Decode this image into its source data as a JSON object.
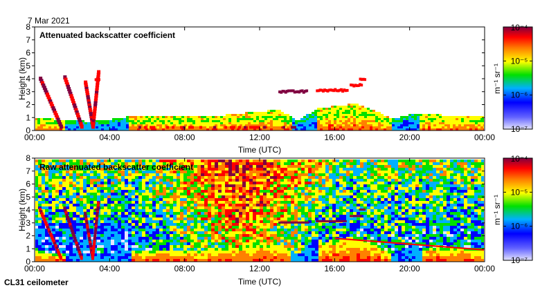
{
  "date_label": "7 Mar 2021",
  "instrument_label": "CL31 ceilometer",
  "chart_data": [
    {
      "type": "heatmap",
      "title": "Attenuated backscatter coefficient",
      "xlabel": "Time (UTC)",
      "ylabel": "Height (km)",
      "x_ticks": [
        "00:00",
        "04:00",
        "08:00",
        "12:00",
        "16:00",
        "20:00",
        "00:00"
      ],
      "xlim_hours": [
        0,
        24
      ],
      "y_ticks": [
        "0",
        "1",
        "2",
        "3",
        "4",
        "5",
        "6",
        "7",
        "8"
      ],
      "ylim_km": [
        0,
        8
      ],
      "colorbar": {
        "label": "m⁻¹ sr⁻¹",
        "tick_labels": [
          "10⁻⁴",
          "10⁻⁵",
          "10⁻⁶",
          "10⁻⁷"
        ],
        "range": [
          "1e-7",
          "1e-4"
        ],
        "colors": [
          "#e4e4ff",
          "#0000ff",
          "#00b0ff",
          "#00e000",
          "#ffff00",
          "#ff8000",
          "#ff0000",
          "#800040"
        ]
      },
      "boundary_layer_top_km": [
        [
          0,
          0.9
        ],
        [
          1,
          0.8
        ],
        [
          2,
          0.7
        ],
        [
          3,
          0.6
        ],
        [
          4,
          0.8
        ],
        [
          5,
          1.0
        ],
        [
          6,
          1.0
        ],
        [
          8,
          1.0
        ],
        [
          10,
          1.1
        ],
        [
          12,
          1.4
        ],
        [
          13,
          1.5
        ],
        [
          14,
          0.7
        ],
        [
          15,
          1.6
        ],
        [
          16,
          1.8
        ],
        [
          17,
          2.0
        ],
        [
          18,
          1.5
        ],
        [
          19,
          0.8
        ],
        [
          20,
          1.2
        ],
        [
          22,
          1.1
        ],
        [
          24,
          1.1
        ]
      ],
      "cloud_layers": [
        {
          "start_h": 13.0,
          "end_h": 14.5,
          "base_km": 3.0,
          "level": "very high"
        },
        {
          "start_h": 15.0,
          "end_h": 16.6,
          "base_km": 3.1,
          "level": "high"
        },
        {
          "start_h": 16.8,
          "end_h": 17.4,
          "base_km": 3.5,
          "level": "high"
        },
        {
          "start_h": 17.3,
          "end_h": 17.6,
          "base_km": 4.0,
          "level": "high"
        },
        {
          "start_h": 3.2,
          "end_h": 3.4,
          "base_km": 4.0,
          "level": "high"
        }
      ],
      "precipitation_streaks": [
        {
          "start_h": 0.3,
          "top_km": 3.7,
          "end_h": 1.4
        },
        {
          "start_h": 1.6,
          "top_km": 3.8,
          "end_h": 2.5
        },
        {
          "start_h": 2.7,
          "top_km": 3.4,
          "end_h": 3.1
        },
        {
          "start_h": 3.4,
          "top_km": 4.2,
          "end_h": 3.1
        }
      ]
    },
    {
      "type": "heatmap",
      "title": "Raw attenuated backscatter coefficient",
      "xlabel": "Time (UTC)",
      "ylabel": "Height (km)",
      "x_ticks": [
        "00:00",
        "04:00",
        "08:00",
        "12:00",
        "16:00",
        "20:00",
        "00:00"
      ],
      "xlim_hours": [
        0,
        24
      ],
      "y_ticks": [
        "0",
        "1",
        "2",
        "3",
        "4",
        "5",
        "6",
        "7",
        "8"
      ],
      "ylim_km": [
        0,
        8
      ],
      "colorbar": {
        "label": "m⁻¹ sr⁻¹",
        "tick_labels": [
          "10⁻⁴",
          "10⁻⁵",
          "10⁻⁶",
          "10⁻⁷"
        ],
        "range": [
          "1e-7",
          "1e-4"
        ],
        "colors": [
          "#e4e4ff",
          "#0000ff",
          "#00b0ff",
          "#00e000",
          "#ffff00",
          "#ff8000",
          "#ff0000",
          "#800040"
        ]
      },
      "noise_region_top_km": 7.7
    }
  ]
}
